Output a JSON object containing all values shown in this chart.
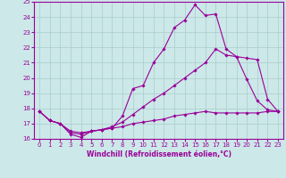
{
  "xlabel": "Windchill (Refroidissement éolien,°C)",
  "ylabel": "",
  "xlim": [
    -0.5,
    23.5
  ],
  "ylim": [
    16,
    25
  ],
  "yticks": [
    16,
    17,
    18,
    19,
    20,
    21,
    22,
    23,
    24,
    25
  ],
  "xticks": [
    0,
    1,
    2,
    3,
    4,
    5,
    6,
    7,
    8,
    9,
    10,
    11,
    12,
    13,
    14,
    15,
    16,
    17,
    18,
    19,
    20,
    21,
    22,
    23
  ],
  "bg_color": "#cce8e8",
  "line_color": "#990099",
  "grid_color": "#aacccc",
  "lines": [
    {
      "x": [
        0,
        1,
        2,
        3,
        4,
        5,
        6,
        7,
        8,
        9,
        10,
        11,
        12,
        13,
        14,
        15,
        16,
        17,
        18,
        19,
        20,
        21,
        22,
        23
      ],
      "y": [
        17.8,
        17.2,
        17.0,
        16.3,
        16.1,
        16.5,
        16.6,
        16.7,
        17.5,
        19.3,
        19.5,
        21.0,
        21.9,
        23.3,
        23.8,
        24.8,
        24.1,
        24.2,
        21.9,
        21.4,
        19.9,
        18.5,
        17.9,
        17.8
      ]
    },
    {
      "x": [
        0,
        1,
        2,
        3,
        4,
        5,
        6,
        7,
        8,
        9,
        10,
        11,
        12,
        13,
        14,
        15,
        16,
        17,
        18,
        19,
        20,
        21,
        22,
        23
      ],
      "y": [
        17.8,
        17.2,
        17.0,
        16.5,
        16.4,
        16.5,
        16.6,
        16.8,
        17.1,
        17.6,
        18.1,
        18.6,
        19.0,
        19.5,
        20.0,
        20.5,
        21.0,
        21.9,
        21.5,
        21.4,
        21.3,
        21.2,
        18.6,
        17.8
      ]
    },
    {
      "x": [
        0,
        1,
        2,
        3,
        4,
        5,
        6,
        7,
        8,
        9,
        10,
        11,
        12,
        13,
        14,
        15,
        16,
        17,
        18,
        19,
        20,
        21,
        22,
        23
      ],
      "y": [
        17.8,
        17.2,
        17.0,
        16.4,
        16.3,
        16.5,
        16.6,
        16.7,
        16.8,
        17.0,
        17.1,
        17.2,
        17.3,
        17.5,
        17.6,
        17.7,
        17.8,
        17.7,
        17.7,
        17.7,
        17.7,
        17.7,
        17.8,
        17.8
      ]
    }
  ]
}
